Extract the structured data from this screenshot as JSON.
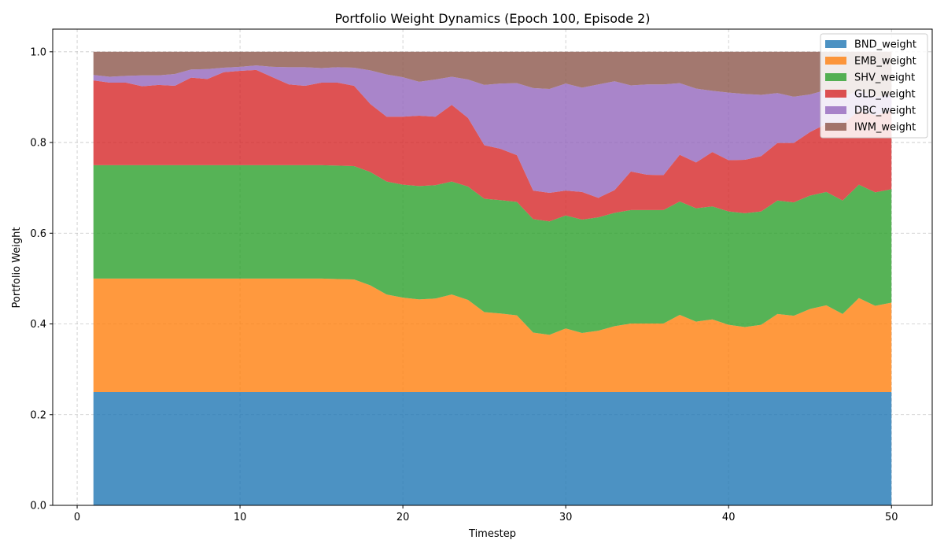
{
  "chart_data": {
    "type": "area",
    "stacked": true,
    "title": "Portfolio Weight Dynamics (Epoch 100, Episode 2)",
    "xlabel": "Timestep",
    "ylabel": "Portfolio Weight",
    "xlim": [
      -1.5,
      52.5
    ],
    "ylim": [
      0,
      1.05
    ],
    "xticks": [
      0,
      10,
      20,
      30,
      40,
      50
    ],
    "yticks": [
      0.0,
      0.2,
      0.4,
      0.6,
      0.8,
      1.0
    ],
    "xtick_labels": [
      "0",
      "10",
      "20",
      "30",
      "40",
      "50"
    ],
    "ytick_labels": [
      "0.0",
      "0.2",
      "0.4",
      "0.6",
      "0.8",
      "1.0"
    ],
    "grid": true,
    "legend_position": "top-right",
    "x": [
      1,
      2,
      3,
      4,
      5,
      6,
      7,
      8,
      9,
      10,
      11,
      12,
      13,
      14,
      15,
      16,
      17,
      18,
      19,
      20,
      21,
      22,
      23,
      24,
      25,
      26,
      27,
      28,
      29,
      30,
      31,
      32,
      33,
      34,
      35,
      36,
      37,
      38,
      39,
      40,
      41,
      42,
      43,
      44,
      45,
      46,
      47,
      48,
      49,
      50
    ],
    "series": [
      {
        "name": "BND_weight",
        "color": "#1f77b4",
        "values": [
          0.25,
          0.25,
          0.25,
          0.25,
          0.25,
          0.25,
          0.25,
          0.25,
          0.25,
          0.25,
          0.25,
          0.25,
          0.25,
          0.25,
          0.25,
          0.25,
          0.25,
          0.25,
          0.25,
          0.25,
          0.25,
          0.25,
          0.25,
          0.25,
          0.25,
          0.25,
          0.25,
          0.25,
          0.25,
          0.25,
          0.25,
          0.25,
          0.25,
          0.25,
          0.25,
          0.25,
          0.25,
          0.25,
          0.25,
          0.25,
          0.25,
          0.25,
          0.25,
          0.25,
          0.25,
          0.25,
          0.25,
          0.25,
          0.25,
          0.25
        ]
      },
      {
        "name": "EMB_weight",
        "color": "#ff7f0e",
        "values": [
          0.25,
          0.25,
          0.25,
          0.25,
          0.25,
          0.25,
          0.25,
          0.25,
          0.25,
          0.25,
          0.25,
          0.25,
          0.25,
          0.25,
          0.25,
          0.249,
          0.248,
          0.235,
          0.215,
          0.208,
          0.204,
          0.206,
          0.215,
          0.203,
          0.176,
          0.173,
          0.169,
          0.131,
          0.126,
          0.14,
          0.13,
          0.135,
          0.145,
          0.151,
          0.151,
          0.151,
          0.17,
          0.155,
          0.16,
          0.148,
          0.143,
          0.148,
          0.172,
          0.168,
          0.183,
          0.191,
          0.172,
          0.207,
          0.19,
          0.197
        ]
      },
      {
        "name": "SHV_weight",
        "color": "#2ca02c",
        "values": [
          0.25,
          0.25,
          0.25,
          0.25,
          0.25,
          0.25,
          0.25,
          0.25,
          0.25,
          0.25,
          0.25,
          0.25,
          0.25,
          0.25,
          0.25,
          0.25,
          0.25,
          0.25,
          0.249,
          0.249,
          0.25,
          0.25,
          0.249,
          0.25,
          0.25,
          0.25,
          0.25,
          0.25,
          0.25,
          0.249,
          0.25,
          0.25,
          0.25,
          0.25,
          0.25,
          0.25,
          0.25,
          0.25,
          0.249,
          0.25,
          0.251,
          0.25,
          0.25,
          0.25,
          0.25,
          0.25,
          0.25,
          0.25,
          0.25,
          0.25
        ]
      },
      {
        "name": "GLD_weight",
        "color": "#d62728",
        "values": [
          0.187,
          0.182,
          0.182,
          0.174,
          0.177,
          0.175,
          0.193,
          0.19,
          0.205,
          0.208,
          0.21,
          0.194,
          0.178,
          0.175,
          0.182,
          0.183,
          0.177,
          0.15,
          0.143,
          0.15,
          0.155,
          0.151,
          0.169,
          0.151,
          0.118,
          0.113,
          0.103,
          0.063,
          0.063,
          0.055,
          0.061,
          0.043,
          0.05,
          0.085,
          0.078,
          0.077,
          0.103,
          0.101,
          0.12,
          0.113,
          0.118,
          0.122,
          0.127,
          0.131,
          0.14,
          0.15,
          0.168,
          0.163,
          0.17,
          0.173
        ]
      },
      {
        "name": "DBC_weight",
        "color": "#9467bd",
        "values": [
          0.012,
          0.013,
          0.015,
          0.024,
          0.021,
          0.026,
          0.018,
          0.022,
          0.01,
          0.009,
          0.01,
          0.023,
          0.038,
          0.041,
          0.032,
          0.034,
          0.04,
          0.074,
          0.093,
          0.087,
          0.075,
          0.082,
          0.062,
          0.085,
          0.133,
          0.144,
          0.159,
          0.226,
          0.229,
          0.236,
          0.23,
          0.25,
          0.24,
          0.19,
          0.199,
          0.2,
          0.158,
          0.163,
          0.135,
          0.149,
          0.145,
          0.135,
          0.11,
          0.102,
          0.083,
          0.075,
          0.06,
          0.045,
          0.04,
          0.035
        ]
      },
      {
        "name": "IWM_weight",
        "color": "#8c564b",
        "values": [
          0.051,
          0.055,
          0.053,
          0.052,
          0.052,
          0.049,
          0.039,
          0.038,
          0.035,
          0.033,
          0.03,
          0.033,
          0.034,
          0.034,
          0.036,
          0.034,
          0.035,
          0.041,
          0.05,
          0.056,
          0.066,
          0.061,
          0.055,
          0.061,
          0.073,
          0.07,
          0.069,
          0.08,
          0.082,
          0.07,
          0.079,
          0.072,
          0.065,
          0.074,
          0.072,
          0.072,
          0.069,
          0.081,
          0.086,
          0.09,
          0.093,
          0.095,
          0.091,
          0.099,
          0.094,
          0.084,
          0.1,
          0.085,
          0.1,
          0.095
        ]
      }
    ]
  }
}
